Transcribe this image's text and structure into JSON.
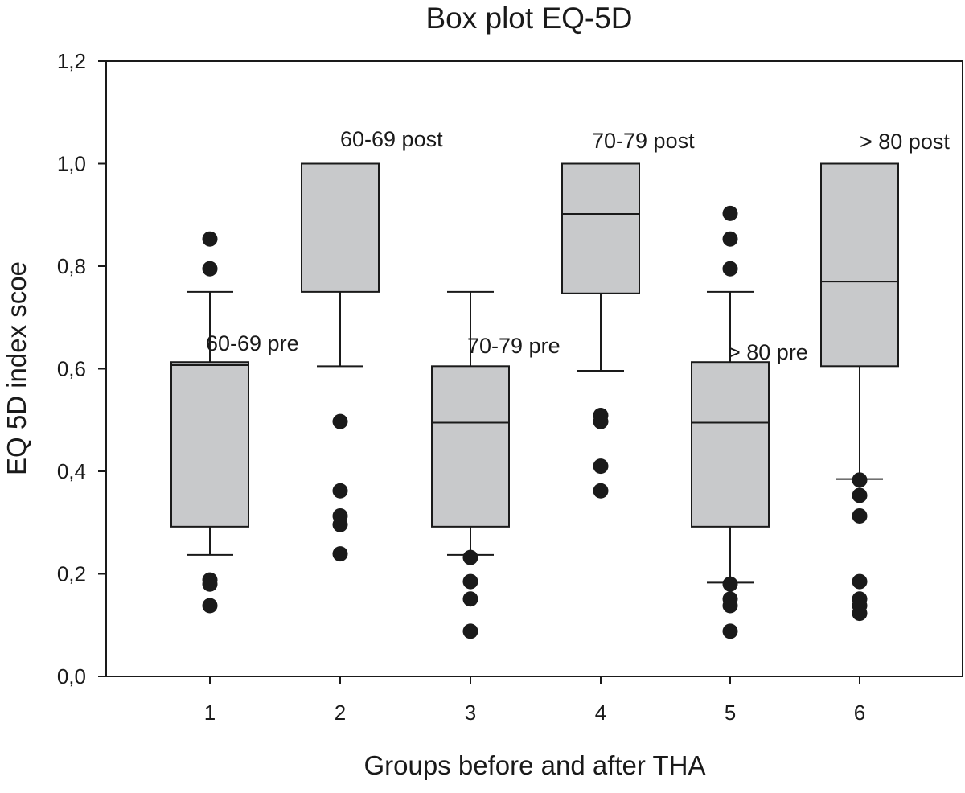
{
  "chart_data": {
    "type": "box",
    "title": "Box plot EQ-5D",
    "xlabel": "Groups before and after THA",
    "ylabel": "EQ 5D index scoe",
    "ylim": [
      0,
      1.2
    ],
    "y_ticks": [
      "0,0",
      "0,2",
      "0,4",
      "0,6",
      "0,8",
      "1,0",
      "1,2"
    ],
    "y_tick_values": [
      0,
      0.2,
      0.4,
      0.6,
      0.8,
      1.0,
      1.2
    ],
    "categories": [
      "1",
      "2",
      "3",
      "4",
      "5",
      "6"
    ],
    "grid": false,
    "box_color": "#c8c9cb",
    "outline_color": "#1a1a1a",
    "groups": [
      {
        "category": "1",
        "label": "60-69 pre",
        "whisker_low": 0.237,
        "q1": 0.292,
        "median": 0.607,
        "q3": 0.613,
        "whisker_high": 0.75,
        "outliers": [
          0.853,
          0.795,
          0.188,
          0.18,
          0.138
        ]
      },
      {
        "category": "2",
        "label": "60-69 post",
        "whisker_low": 0.605,
        "q1": 0.75,
        "median": 1.0,
        "q3": 1.0,
        "whisker_high": 1.0,
        "outliers": [
          0.497,
          0.362,
          0.313,
          0.296,
          0.239
        ]
      },
      {
        "category": "3",
        "label": "70-79 pre",
        "whisker_low": 0.237,
        "q1": 0.292,
        "median": 0.495,
        "q3": 0.605,
        "whisker_high": 0.75,
        "outliers": [
          0.232,
          0.185,
          0.151,
          0.088
        ]
      },
      {
        "category": "4",
        "label": "70-79 post",
        "whisker_low": 0.596,
        "q1": 0.747,
        "median": 0.902,
        "q3": 1.0,
        "whisker_high": 1.0,
        "outliers": [
          0.509,
          0.497,
          0.41,
          0.362
        ]
      },
      {
        "category": "5",
        "label": "> 80 pre",
        "whisker_low": 0.183,
        "q1": 0.292,
        "median": 0.495,
        "q3": 0.613,
        "whisker_high": 0.75,
        "outliers": [
          0.903,
          0.853,
          0.795,
          0.18,
          0.151,
          0.138,
          0.088
        ]
      },
      {
        "category": "6",
        "label": "> 80 post",
        "whisker_low": 0.385,
        "q1": 0.605,
        "median": 0.77,
        "q3": 1.0,
        "whisker_high": 1.0,
        "outliers": [
          0.383,
          0.353,
          0.313,
          0.185,
          0.151,
          0.138,
          0.123
        ]
      }
    ]
  }
}
